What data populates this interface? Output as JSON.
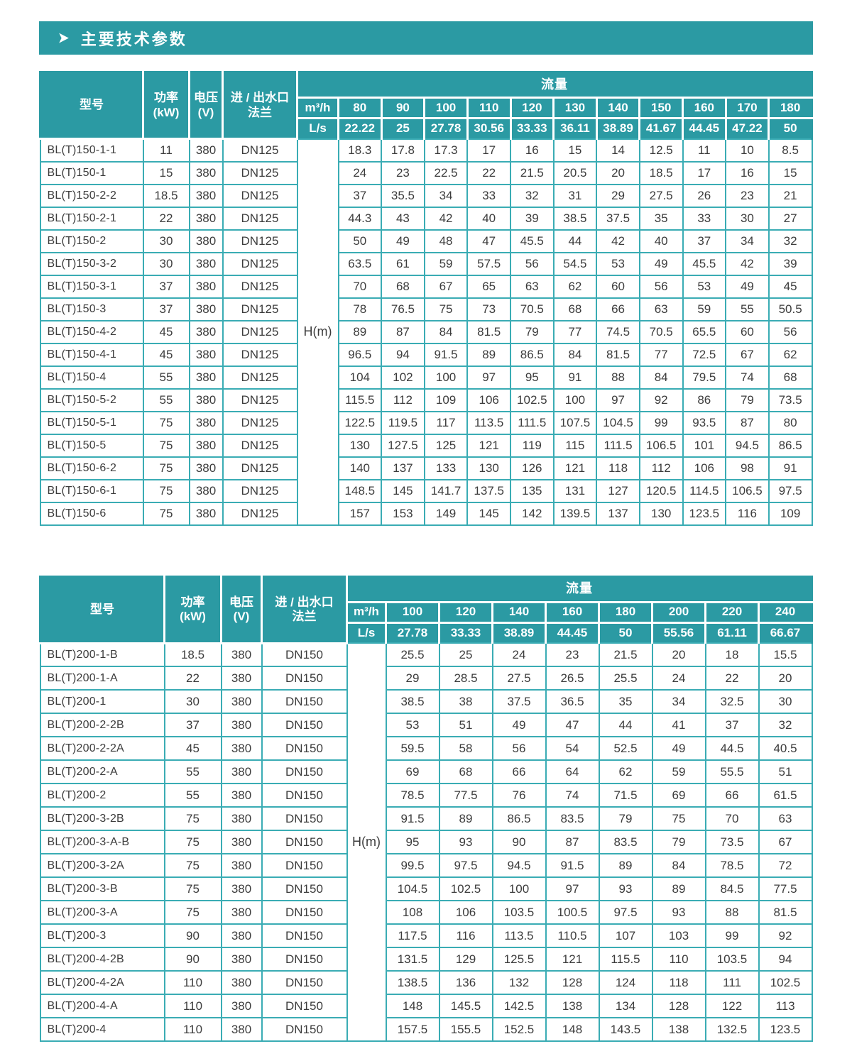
{
  "colors": {
    "accent": "#2b9aa3",
    "grid": "#3aacb4",
    "header_text": "#ffffff",
    "body_text": "#3c3c3c"
  },
  "section_header": {
    "arrow_icon": "➤",
    "title": "主要技术参数"
  },
  "tables": [
    {
      "headers": {
        "model": "型号",
        "power_l1": "功率",
        "power_l2": "(kW)",
        "voltage_l1": "电压",
        "voltage_l2": "(V)",
        "flange_l1": "进 / 出水口",
        "flange_l2": "法兰",
        "flow": "流量",
        "unit_m3h": "m³/h",
        "unit_ls": "L/s",
        "head_label": "H(m)"
      },
      "m3h": [
        "80",
        "90",
        "100",
        "110",
        "120",
        "130",
        "140",
        "150",
        "160",
        "170",
        "180"
      ],
      "ls": [
        "22.22",
        "25",
        "27.78",
        "30.56",
        "33.33",
        "36.11",
        "38.89",
        "41.67",
        "44.45",
        "47.22",
        "50"
      ],
      "rows": [
        {
          "model": "BL(T)150-1-1",
          "power": "11",
          "voltage": "380",
          "flange": "DN125",
          "values": [
            "18.3",
            "17.8",
            "17.3",
            "17",
            "16",
            "15",
            "14",
            "12.5",
            "11",
            "10",
            "8.5"
          ]
        },
        {
          "model": "BL(T)150-1",
          "power": "15",
          "voltage": "380",
          "flange": "DN125",
          "values": [
            "24",
            "23",
            "22.5",
            "22",
            "21.5",
            "20.5",
            "20",
            "18.5",
            "17",
            "16",
            "15"
          ]
        },
        {
          "model": "BL(T)150-2-2",
          "power": "18.5",
          "voltage": "380",
          "flange": "DN125",
          "values": [
            "37",
            "35.5",
            "34",
            "33",
            "32",
            "31",
            "29",
            "27.5",
            "26",
            "23",
            "21"
          ]
        },
        {
          "model": "BL(T)150-2-1",
          "power": "22",
          "voltage": "380",
          "flange": "DN125",
          "values": [
            "44.3",
            "43",
            "42",
            "40",
            "39",
            "38.5",
            "37.5",
            "35",
            "33",
            "30",
            "27"
          ]
        },
        {
          "model": "BL(T)150-2",
          "power": "30",
          "voltage": "380",
          "flange": "DN125",
          "values": [
            "50",
            "49",
            "48",
            "47",
            "45.5",
            "44",
            "42",
            "40",
            "37",
            "34",
            "32"
          ]
        },
        {
          "model": "BL(T)150-3-2",
          "power": "30",
          "voltage": "380",
          "flange": "DN125",
          "values": [
            "63.5",
            "61",
            "59",
            "57.5",
            "56",
            "54.5",
            "53",
            "49",
            "45.5",
            "42",
            "39"
          ]
        },
        {
          "model": "BL(T)150-3-1",
          "power": "37",
          "voltage": "380",
          "flange": "DN125",
          "values": [
            "70",
            "68",
            "67",
            "65",
            "63",
            "62",
            "60",
            "56",
            "53",
            "49",
            "45"
          ]
        },
        {
          "model": "BL(T)150-3",
          "power": "37",
          "voltage": "380",
          "flange": "DN125",
          "values": [
            "78",
            "76.5",
            "75",
            "73",
            "70.5",
            "68",
            "66",
            "63",
            "59",
            "55",
            "50.5"
          ]
        },
        {
          "model": "BL(T)150-4-2",
          "power": "45",
          "voltage": "380",
          "flange": "DN125",
          "values": [
            "89",
            "87",
            "84",
            "81.5",
            "79",
            "77",
            "74.5",
            "70.5",
            "65.5",
            "60",
            "56"
          ]
        },
        {
          "model": "BL(T)150-4-1",
          "power": "45",
          "voltage": "380",
          "flange": "DN125",
          "values": [
            "96.5",
            "94",
            "91.5",
            "89",
            "86.5",
            "84",
            "81.5",
            "77",
            "72.5",
            "67",
            "62"
          ]
        },
        {
          "model": "BL(T)150-4",
          "power": "55",
          "voltage": "380",
          "flange": "DN125",
          "values": [
            "104",
            "102",
            "100",
            "97",
            "95",
            "91",
            "88",
            "84",
            "79.5",
            "74",
            "68"
          ]
        },
        {
          "model": "BL(T)150-5-2",
          "power": "55",
          "voltage": "380",
          "flange": "DN125",
          "values": [
            "115.5",
            "112",
            "109",
            "106",
            "102.5",
            "100",
            "97",
            "92",
            "86",
            "79",
            "73.5"
          ]
        },
        {
          "model": "BL(T)150-5-1",
          "power": "75",
          "voltage": "380",
          "flange": "DN125",
          "values": [
            "122.5",
            "119.5",
            "117",
            "113.5",
            "111.5",
            "107.5",
            "104.5",
            "99",
            "93.5",
            "87",
            "80"
          ]
        },
        {
          "model": "BL(T)150-5",
          "power": "75",
          "voltage": "380",
          "flange": "DN125",
          "values": [
            "130",
            "127.5",
            "125",
            "121",
            "119",
            "115",
            "111.5",
            "106.5",
            "101",
            "94.5",
            "86.5"
          ]
        },
        {
          "model": "BL(T)150-6-2",
          "power": "75",
          "voltage": "380",
          "flange": "DN125",
          "values": [
            "140",
            "137",
            "133",
            "130",
            "126",
            "121",
            "118",
            "112",
            "106",
            "98",
            "91"
          ]
        },
        {
          "model": "BL(T)150-6-1",
          "power": "75",
          "voltage": "380",
          "flange": "DN125",
          "values": [
            "148.5",
            "145",
            "141.7",
            "137.5",
            "135",
            "131",
            "127",
            "120.5",
            "114.5",
            "106.5",
            "97.5"
          ]
        },
        {
          "model": "BL(T)150-6",
          "power": "75",
          "voltage": "380",
          "flange": "DN125",
          "values": [
            "157",
            "153",
            "149",
            "145",
            "142",
            "139.5",
            "137",
            "130",
            "123.5",
            "116",
            "109"
          ]
        }
      ]
    },
    {
      "headers": {
        "model": "型号",
        "power_l1": "功率",
        "power_l2": "(kW)",
        "voltage_l1": "电压",
        "voltage_l2": "(V)",
        "flange_l1": "进 / 出水口",
        "flange_l2": "法兰",
        "flow": "流量",
        "unit_m3h": "m³/h",
        "unit_ls": "L/s",
        "head_label": "H(m)"
      },
      "m3h": [
        "100",
        "120",
        "140",
        "160",
        "180",
        "200",
        "220",
        "240"
      ],
      "ls": [
        "27.78",
        "33.33",
        "38.89",
        "44.45",
        "50",
        "55.56",
        "61.11",
        "66.67"
      ],
      "rows": [
        {
          "model": "BL(T)200-1-B",
          "power": "18.5",
          "voltage": "380",
          "flange": "DN150",
          "values": [
            "25.5",
            "25",
            "24",
            "23",
            "21.5",
            "20",
            "18",
            "15.5"
          ]
        },
        {
          "model": "BL(T)200-1-A",
          "power": "22",
          "voltage": "380",
          "flange": "DN150",
          "values": [
            "29",
            "28.5",
            "27.5",
            "26.5",
            "25.5",
            "24",
            "22",
            "20"
          ]
        },
        {
          "model": "BL(T)200-1",
          "power": "30",
          "voltage": "380",
          "flange": "DN150",
          "values": [
            "38.5",
            "38",
            "37.5",
            "36.5",
            "35",
            "34",
            "32.5",
            "30"
          ]
        },
        {
          "model": "BL(T)200-2-2B",
          "power": "37",
          "voltage": "380",
          "flange": "DN150",
          "values": [
            "53",
            "51",
            "49",
            "47",
            "44",
            "41",
            "37",
            "32"
          ]
        },
        {
          "model": "BL(T)200-2-2A",
          "power": "45",
          "voltage": "380",
          "flange": "DN150",
          "values": [
            "59.5",
            "58",
            "56",
            "54",
            "52.5",
            "49",
            "44.5",
            "40.5"
          ]
        },
        {
          "model": "BL(T)200-2-A",
          "power": "55",
          "voltage": "380",
          "flange": "DN150",
          "values": [
            "69",
            "68",
            "66",
            "64",
            "62",
            "59",
            "55.5",
            "51"
          ]
        },
        {
          "model": "BL(T)200-2",
          "power": "55",
          "voltage": "380",
          "flange": "DN150",
          "values": [
            "78.5",
            "77.5",
            "76",
            "74",
            "71.5",
            "69",
            "66",
            "61.5"
          ]
        },
        {
          "model": "BL(T)200-3-2B",
          "power": "75",
          "voltage": "380",
          "flange": "DN150",
          "values": [
            "91.5",
            "89",
            "86.5",
            "83.5",
            "79",
            "75",
            "70",
            "63"
          ]
        },
        {
          "model": "BL(T)200-3-A-B",
          "power": "75",
          "voltage": "380",
          "flange": "DN150",
          "values": [
            "95",
            "93",
            "90",
            "87",
            "83.5",
            "79",
            "73.5",
            "67"
          ]
        },
        {
          "model": "BL(T)200-3-2A",
          "power": "75",
          "voltage": "380",
          "flange": "DN150",
          "values": [
            "99.5",
            "97.5",
            "94.5",
            "91.5",
            "89",
            "84",
            "78.5",
            "72"
          ]
        },
        {
          "model": "BL(T)200-3-B",
          "power": "75",
          "voltage": "380",
          "flange": "DN150",
          "values": [
            "104.5",
            "102.5",
            "100",
            "97",
            "93",
            "89",
            "84.5",
            "77.5"
          ]
        },
        {
          "model": "BL(T)200-3-A",
          "power": "75",
          "voltage": "380",
          "flange": "DN150",
          "values": [
            "108",
            "106",
            "103.5",
            "100.5",
            "97.5",
            "93",
            "88",
            "81.5"
          ]
        },
        {
          "model": "BL(T)200-3",
          "power": "90",
          "voltage": "380",
          "flange": "DN150",
          "values": [
            "117.5",
            "116",
            "113.5",
            "110.5",
            "107",
            "103",
            "99",
            "92"
          ]
        },
        {
          "model": "BL(T)200-4-2B",
          "power": "90",
          "voltage": "380",
          "flange": "DN150",
          "values": [
            "131.5",
            "129",
            "125.5",
            "121",
            "115.5",
            "110",
            "103.5",
            "94"
          ]
        },
        {
          "model": "BL(T)200-4-2A",
          "power": "110",
          "voltage": "380",
          "flange": "DN150",
          "values": [
            "138.5",
            "136",
            "132",
            "128",
            "124",
            "118",
            "111",
            "102.5"
          ]
        },
        {
          "model": "BL(T)200-4-A",
          "power": "110",
          "voltage": "380",
          "flange": "DN150",
          "values": [
            "148",
            "145.5",
            "142.5",
            "138",
            "134",
            "128",
            "122",
            "113"
          ]
        },
        {
          "model": "BL(T)200-4",
          "power": "110",
          "voltage": "380",
          "flange": "DN150",
          "values": [
            "157.5",
            "155.5",
            "152.5",
            "148",
            "143.5",
            "138",
            "132.5",
            "123.5"
          ]
        }
      ]
    }
  ]
}
